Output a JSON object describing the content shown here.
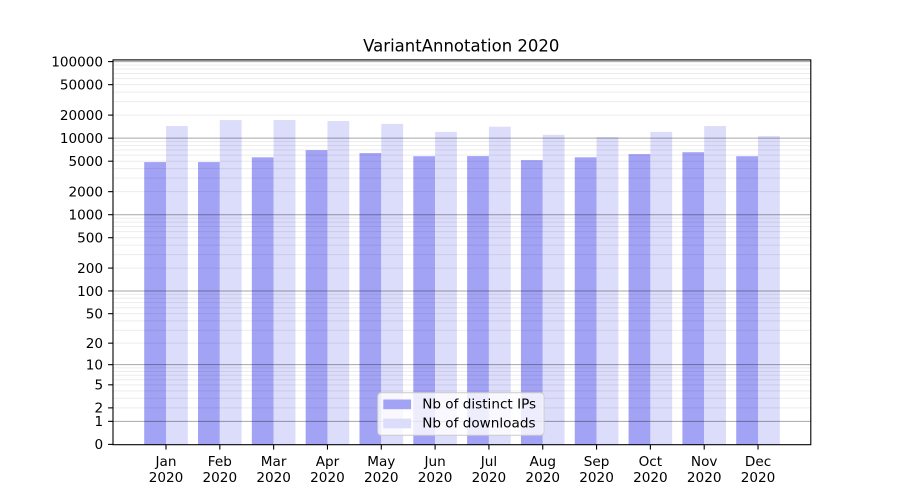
{
  "chart_data": {
    "type": "bar",
    "title": "VariantAnnotation 2020",
    "categories": [
      "Jan",
      "Feb",
      "Mar",
      "Apr",
      "May",
      "Jun",
      "Jul",
      "Aug",
      "Sep",
      "Oct",
      "Nov",
      "Dec"
    ],
    "category_year": "2020",
    "series": [
      {
        "name": "Nb of distinct IPs",
        "color": "#a3a3f5",
        "values": [
          4870,
          4870,
          5620,
          6980,
          6380,
          5810,
          5830,
          5170,
          5620,
          6190,
          6550,
          5810
        ]
      },
      {
        "name": "Nb of downloads",
        "color": "#dcdcfb",
        "values": [
          14420,
          17220,
          17250,
          16710,
          15360,
          12070,
          14110,
          11060,
          10320,
          12070,
          14390,
          10640
        ]
      }
    ],
    "xlabel": "",
    "ylabel": "",
    "yscale": "log10(1+y)",
    "ylim": [
      0,
      100000
    ],
    "ytick_labels": [
      "0",
      "1",
      "2",
      "5",
      "10",
      "20",
      "50",
      "100",
      "200",
      "500",
      "1000",
      "2000",
      "5000",
      "10000",
      "20000",
      "50000",
      "100000"
    ],
    "yticks": [
      0,
      1,
      2,
      5,
      10,
      20,
      50,
      100,
      200,
      500,
      1000,
      2000,
      5000,
      10000,
      20000,
      50000,
      100000
    ],
    "grid": "on",
    "grid_major": [
      1,
      10,
      100,
      1000,
      10000,
      100000
    ],
    "legend_position": "lower center",
    "legend_entries": [
      "Nb of distinct IPs",
      "Nb of downloads"
    ]
  },
  "colors": {
    "background": "#ffffff",
    "spine": "#000000",
    "tick": "#000000",
    "text": "#000000",
    "grid_major": "rgba(0,0,0,0.35)",
    "grid_minor": "rgba(0,0,0,0.075)",
    "legend_border": "#cccccc",
    "legend_bg": "rgba(255,255,255,0.8)"
  }
}
